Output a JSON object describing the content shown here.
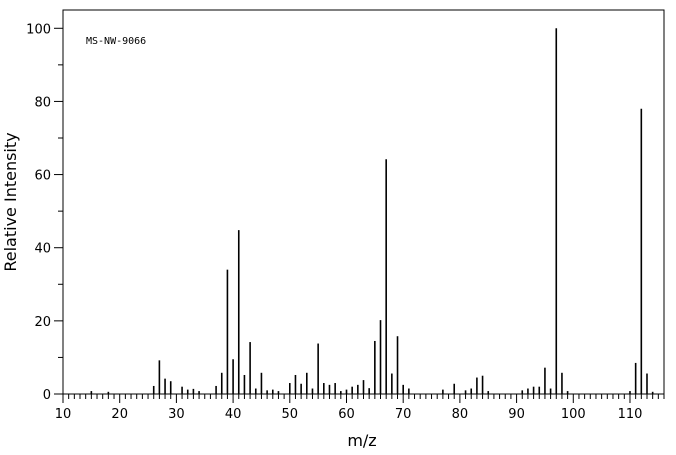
{
  "chart_data": {
    "type": "bar",
    "title": "",
    "annotation": "MS-NW-9066",
    "xlabel": "m/z",
    "ylabel": "Relative Intensity",
    "xlim": [
      10,
      116
    ],
    "ylim": [
      0,
      105
    ],
    "x_ticks": [
      10,
      20,
      30,
      40,
      50,
      60,
      70,
      80,
      90,
      100,
      110
    ],
    "y_ticks": [
      0,
      20,
      40,
      60,
      80,
      100
    ],
    "grid": false,
    "peaks": [
      {
        "x": 15,
        "y": 0.8
      },
      {
        "x": 18,
        "y": 0.6
      },
      {
        "x": 26,
        "y": 2.2
      },
      {
        "x": 27,
        "y": 9.2
      },
      {
        "x": 28,
        "y": 4.2
      },
      {
        "x": 29,
        "y": 3.5
      },
      {
        "x": 31,
        "y": 2.0
      },
      {
        "x": 32,
        "y": 1.2
      },
      {
        "x": 33,
        "y": 1.4
      },
      {
        "x": 34,
        "y": 0.8
      },
      {
        "x": 37,
        "y": 2.2
      },
      {
        "x": 38,
        "y": 5.8
      },
      {
        "x": 39,
        "y": 34.0
      },
      {
        "x": 40,
        "y": 9.5
      },
      {
        "x": 41,
        "y": 44.8
      },
      {
        "x": 42,
        "y": 5.2
      },
      {
        "x": 43,
        "y": 14.2
      },
      {
        "x": 44,
        "y": 1.5
      },
      {
        "x": 45,
        "y": 5.8
      },
      {
        "x": 46,
        "y": 1.0
      },
      {
        "x": 47,
        "y": 1.2
      },
      {
        "x": 48,
        "y": 0.8
      },
      {
        "x": 50,
        "y": 3.0
      },
      {
        "x": 51,
        "y": 5.2
      },
      {
        "x": 52,
        "y": 2.8
      },
      {
        "x": 53,
        "y": 5.8
      },
      {
        "x": 54,
        "y": 1.5
      },
      {
        "x": 55,
        "y": 13.8
      },
      {
        "x": 56,
        "y": 3.0
      },
      {
        "x": 57,
        "y": 2.5
      },
      {
        "x": 58,
        "y": 3.0
      },
      {
        "x": 59,
        "y": 0.8
      },
      {
        "x": 60,
        "y": 1.2
      },
      {
        "x": 61,
        "y": 2.0
      },
      {
        "x": 62,
        "y": 2.5
      },
      {
        "x": 63,
        "y": 3.8
      },
      {
        "x": 64,
        "y": 1.6
      },
      {
        "x": 65,
        "y": 14.5
      },
      {
        "x": 66,
        "y": 20.2
      },
      {
        "x": 67,
        "y": 64.2
      },
      {
        "x": 68,
        "y": 5.6
      },
      {
        "x": 69,
        "y": 15.8
      },
      {
        "x": 70,
        "y": 2.5
      },
      {
        "x": 71,
        "y": 1.5
      },
      {
        "x": 77,
        "y": 1.2
      },
      {
        "x": 79,
        "y": 2.8
      },
      {
        "x": 81,
        "y": 1.0
      },
      {
        "x": 82,
        "y": 1.5
      },
      {
        "x": 83,
        "y": 4.5
      },
      {
        "x": 84,
        "y": 5.0
      },
      {
        "x": 85,
        "y": 0.8
      },
      {
        "x": 91,
        "y": 1.0
      },
      {
        "x": 92,
        "y": 1.5
      },
      {
        "x": 93,
        "y": 2.0
      },
      {
        "x": 94,
        "y": 2.0
      },
      {
        "x": 95,
        "y": 7.2
      },
      {
        "x": 96,
        "y": 1.5
      },
      {
        "x": 97,
        "y": 100.0
      },
      {
        "x": 98,
        "y": 5.8
      },
      {
        "x": 99,
        "y": 0.8
      },
      {
        "x": 110,
        "y": 0.8
      },
      {
        "x": 111,
        "y": 8.5
      },
      {
        "x": 112,
        "y": 78.0
      },
      {
        "x": 113,
        "y": 5.6
      },
      {
        "x": 114,
        "y": 0.6
      }
    ]
  }
}
